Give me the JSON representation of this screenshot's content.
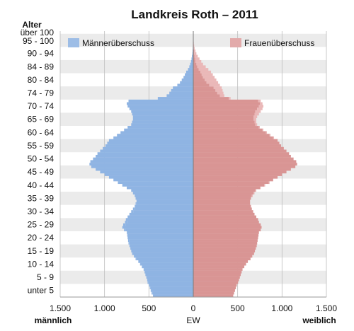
{
  "chart_data": {
    "type": "population-pyramid",
    "title": "Landkreis Roth – 2011",
    "y_axis_title": "Alter",
    "age_labels": [
      "über 100",
      "95 - 100",
      "90 - 94",
      "84 - 89",
      "80 - 84",
      "74 - 79",
      "70 - 74",
      "65 - 69",
      "60 - 64",
      "55 - 59",
      "50 - 54",
      "45 - 49",
      "40 - 44",
      "35 - 39",
      "30 - 34",
      "25 - 29",
      "20 - 24",
      "15 - 19",
      "10 - 14",
      "5 - 9",
      "unter 5"
    ],
    "x_ticks": [
      {
        "value": -1500,
        "label": "1.500"
      },
      {
        "value": -1000,
        "label": "1.000"
      },
      {
        "value": -500,
        "label": "500"
      },
      {
        "value": 0,
        "label": "0"
      },
      {
        "value": 500,
        "label": "500"
      },
      {
        "value": 1000,
        "label": "1.000"
      },
      {
        "value": 1500,
        "label": "1.500"
      }
    ],
    "x_range": [
      -1500,
      1500
    ],
    "x_axis_left_label": "männlich",
    "x_axis_center_label": "EW",
    "x_axis_right_label": "weiblich",
    "legend": {
      "left": "Männerüberschuss",
      "right": "Frauenüberschuss"
    },
    "colors": {
      "male": "#8fb4e3",
      "female": "#d99594",
      "male_surplus": "#b3ccef",
      "female_surplus": "#eab8b8",
      "band": "#ebebeb",
      "grid": "#bdbdbd",
      "axis": "#999999"
    },
    "series": [
      {
        "name": "männlich",
        "unit": "EW per year of age",
        "age_from": 0,
        "values": [
          455,
          470,
          480,
          490,
          500,
          515,
          520,
          530,
          540,
          550,
          560,
          580,
          600,
          620,
          650,
          670,
          690,
          700,
          710,
          720,
          730,
          735,
          740,
          745,
          750,
          780,
          800,
          790,
          770,
          760,
          740,
          720,
          700,
          680,
          660,
          650,
          640,
          650,
          660,
          680,
          700,
          750,
          800,
          850,
          900,
          950,
          1000,
          1050,
          1100,
          1150,
          1170,
          1160,
          1130,
          1100,
          1080,
          1050,
          1020,
          990,
          970,
          950,
          900,
          860,
          820,
          780,
          740,
          700,
          690,
          680,
          680,
          690,
          700,
          720,
          740,
          750,
          730,
          400,
          300,
          270,
          250,
          230,
          180,
          150,
          130,
          110,
          95,
          80,
          60,
          45,
          35,
          25,
          20,
          15,
          10,
          8,
          6,
          4,
          3,
          2,
          1,
          1,
          0
        ]
      },
      {
        "name": "weiblich",
        "unit": "EW per year of age",
        "age_from": 0,
        "values": [
          450,
          460,
          470,
          480,
          490,
          505,
          515,
          525,
          535,
          545,
          555,
          575,
          595,
          615,
          645,
          665,
          685,
          695,
          705,
          715,
          720,
          725,
          730,
          735,
          740,
          760,
          770,
          760,
          740,
          730,
          710,
          690,
          675,
          660,
          650,
          640,
          640,
          650,
          670,
          690,
          710,
          760,
          810,
          860,
          900,
          950,
          1000,
          1050,
          1100,
          1150,
          1170,
          1160,
          1130,
          1100,
          1080,
          1050,
          1020,
          990,
          970,
          950,
          910,
          870,
          830,
          790,
          750,
          720,
          710,
          710,
          720,
          740,
          760,
          780,
          790,
          780,
          760,
          420,
          350,
          340,
          330,
          320,
          300,
          280,
          260,
          240,
          220,
          200,
          170,
          140,
          110,
          90,
          70,
          50,
          35,
          25,
          15,
          10,
          6,
          3,
          2,
          1,
          0
        ]
      }
    ]
  }
}
